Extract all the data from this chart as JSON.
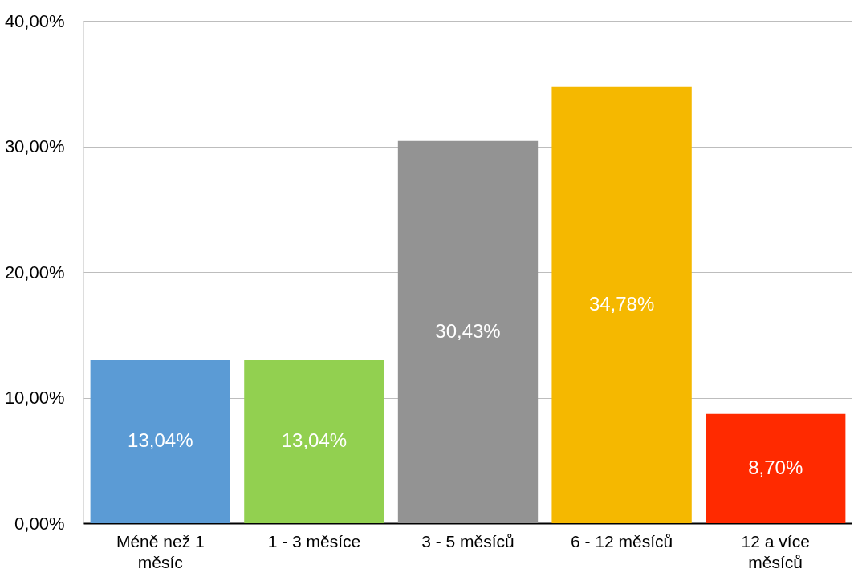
{
  "chart_data": {
    "type": "bar",
    "categories": [
      "Méně než 1 měsíc",
      "1 - 3 měsíce",
      "3 - 5 měsíců",
      "6 - 12 měsíců",
      "12 a více měsíců"
    ],
    "values": [
      13.04,
      13.04,
      30.43,
      34.78,
      8.7
    ],
    "colors": [
      "#5b9bd5",
      "#92d050",
      "#939393",
      "#f5b800",
      "#ff2a00"
    ],
    "value_labels": [
      "13,04%",
      "13,04%",
      "30,43%",
      "34,78%",
      "8,70%"
    ],
    "ylim": [
      0,
      40
    ],
    "yticks": [
      {
        "value": 0,
        "label": "0,00%"
      },
      {
        "value": 10,
        "label": "10,00%"
      },
      {
        "value": 20,
        "label": "20,00%"
      },
      {
        "value": 30,
        "label": "30,00%"
      },
      {
        "value": 40,
        "label": "40,00%"
      }
    ],
    "grid": "y"
  }
}
